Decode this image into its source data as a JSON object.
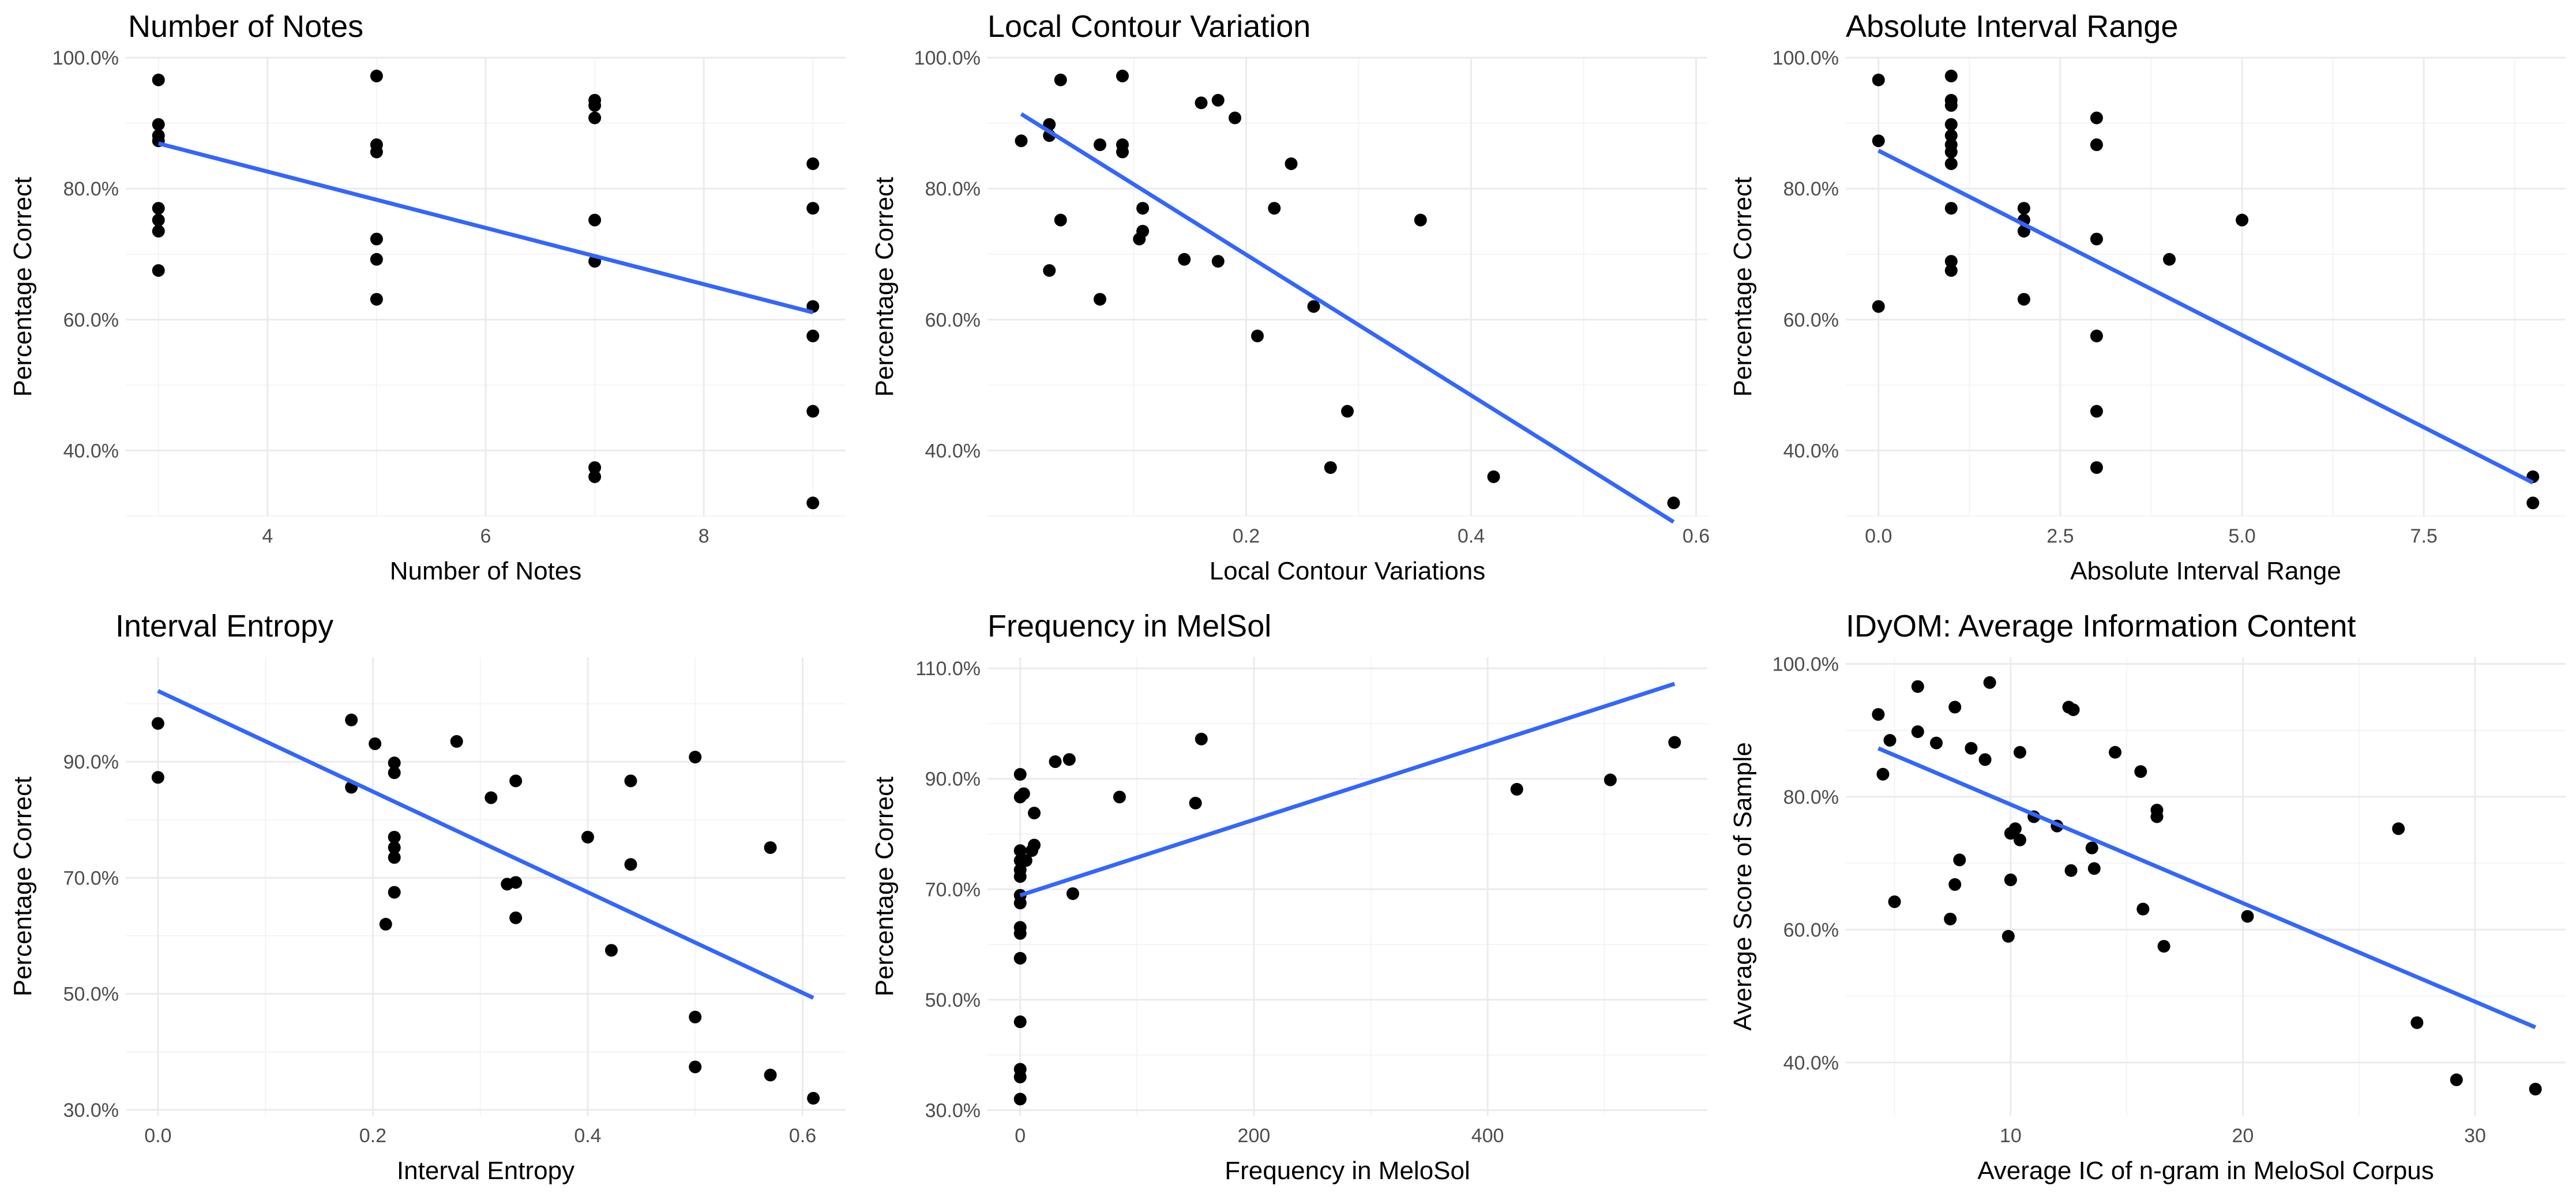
{
  "chart_data": [
    {
      "type": "scatter",
      "title": "Number of Notes",
      "xlabel": "Number of Notes",
      "ylabel": "Percentage Correct",
      "xlim": [
        2.7,
        9.3
      ],
      "ylim": [
        30,
        100
      ],
      "x_ticks": [
        4,
        6,
        8
      ],
      "x_tick_labels": [
        "4",
        "6",
        "8"
      ],
      "y_ticks": [
        40,
        60,
        80,
        100
      ],
      "y_tick_labels": [
        "40.0%",
        "60.0%",
        "80.0%",
        "100.0%"
      ],
      "grid": true,
      "points": [
        [
          3,
          96.6
        ],
        [
          3,
          89.8
        ],
        [
          3,
          88.1
        ],
        [
          3,
          87.3
        ],
        [
          3,
          77
        ],
        [
          3,
          75.2
        ],
        [
          3,
          73.5
        ],
        [
          3,
          67.5
        ],
        [
          5,
          97.2
        ],
        [
          5,
          86.7
        ],
        [
          5,
          85.6
        ],
        [
          5,
          72.3
        ],
        [
          5,
          69.2
        ],
        [
          5,
          63.1
        ],
        [
          7,
          93.5
        ],
        [
          7,
          92.7
        ],
        [
          7,
          90.8
        ],
        [
          7,
          75.2
        ],
        [
          7,
          68.9
        ],
        [
          7,
          37.4
        ],
        [
          7,
          36
        ],
        [
          9,
          83.8
        ],
        [
          9,
          77
        ],
        [
          9,
          62
        ],
        [
          9,
          57.5
        ],
        [
          9,
          46
        ],
        [
          9,
          32
        ]
      ],
      "fit": [
        [
          3,
          86.9
        ],
        [
          9,
          61.1
        ]
      ]
    },
    {
      "type": "scatter",
      "title": "Local Contour Variation",
      "xlabel": "Local Contour Variations",
      "ylabel": "Percentage Correct",
      "xlim": [
        -0.03,
        0.61
      ],
      "ylim": [
        30,
        100
      ],
      "x_ticks": [
        0.2,
        0.4,
        0.6
      ],
      "x_tick_labels": [
        "0.2",
        "0.4",
        "0.6"
      ],
      "y_ticks": [
        40,
        60,
        80,
        100
      ],
      "y_tick_labels": [
        "40.0%",
        "60.0%",
        "80.0%",
        "100.0%"
      ],
      "grid": true,
      "points": [
        [
          0,
          87.3
        ],
        [
          0.025,
          89.8
        ],
        [
          0.025,
          88.1
        ],
        [
          0.025,
          67.5
        ],
        [
          0.035,
          96.6
        ],
        [
          0.035,
          75.2
        ],
        [
          0.07,
          86.7
        ],
        [
          0.07,
          63.1
        ],
        [
          0.09,
          97.2
        ],
        [
          0.09,
          86.7
        ],
        [
          0.09,
          85.6
        ],
        [
          0.105,
          72.3
        ],
        [
          0.108,
          73.5
        ],
        [
          0.108,
          77
        ],
        [
          0.145,
          69.2
        ],
        [
          0.16,
          93.1
        ],
        [
          0.175,
          93.5
        ],
        [
          0.175,
          68.9
        ],
        [
          0.19,
          90.8
        ],
        [
          0.225,
          77
        ],
        [
          0.21,
          57.5
        ],
        [
          0.24,
          83.8
        ],
        [
          0.26,
          62
        ],
        [
          0.275,
          37.4
        ],
        [
          0.29,
          46
        ],
        [
          0.355,
          75.2
        ],
        [
          0.42,
          36
        ],
        [
          0.58,
          32
        ]
      ],
      "fit": [
        [
          0.0,
          91.4
        ],
        [
          0.58,
          29.1
        ]
      ]
    },
    {
      "type": "scatter",
      "title": "Absolute Interval Range",
      "xlabel": "Absolute Interval Range",
      "ylabel": "Percentage Correct",
      "xlim": [
        -0.45,
        9.45
      ],
      "ylim": [
        30,
        100
      ],
      "x_ticks": [
        0,
        2.5,
        5,
        7.5
      ],
      "x_tick_labels": [
        "0.0",
        "2.5",
        "5.0",
        "7.5"
      ],
      "y_ticks": [
        40,
        60,
        80,
        100
      ],
      "y_tick_labels": [
        "40.0%",
        "60.0%",
        "80.0%",
        "100.0%"
      ],
      "grid": true,
      "points": [
        [
          0,
          96.6
        ],
        [
          0,
          87.3
        ],
        [
          0,
          62
        ],
        [
          1,
          97.2
        ],
        [
          1,
          93.5
        ],
        [
          1,
          92.7
        ],
        [
          1,
          89.8
        ],
        [
          1,
          88.1
        ],
        [
          1,
          86.7
        ],
        [
          1,
          85.6
        ],
        [
          1,
          83.8
        ],
        [
          1,
          77
        ],
        [
          1,
          68.9
        ],
        [
          1,
          67.5
        ],
        [
          2,
          77
        ],
        [
          2,
          75.2
        ],
        [
          2,
          73.5
        ],
        [
          2,
          63.1
        ],
        [
          3,
          90.8
        ],
        [
          3,
          86.7
        ],
        [
          3,
          72.3
        ],
        [
          3,
          57.5
        ],
        [
          3,
          46
        ],
        [
          3,
          37.4
        ],
        [
          4,
          69.2
        ],
        [
          5,
          75.2
        ],
        [
          9,
          36
        ],
        [
          9,
          32
        ]
      ],
      "fit": [
        [
          0,
          85.8
        ],
        [
          9,
          35.1
        ]
      ]
    },
    {
      "type": "scatter",
      "title": "Interval Entropy",
      "xlabel": "Interval Entropy",
      "ylabel": "Percentage Correct",
      "xlim": [
        -0.03,
        0.64
      ],
      "ylim": [
        29,
        108
      ],
      "x_ticks": [
        0,
        0.2,
        0.4,
        0.6
      ],
      "x_tick_labels": [
        "0.0",
        "0.2",
        "0.4",
        "0.6"
      ],
      "y_ticks": [
        30,
        50,
        70,
        90
      ],
      "y_tick_labels": [
        "30.0%",
        "50.0%",
        "70.0%",
        "90.0%"
      ],
      "grid": true,
      "points": [
        [
          0,
          96.6
        ],
        [
          0,
          87.3
        ],
        [
          0.18,
          97.2
        ],
        [
          0.18,
          85.6
        ],
        [
          0.202,
          93.1
        ],
        [
          0.212,
          62
        ],
        [
          0.22,
          89.8
        ],
        [
          0.22,
          88.1
        ],
        [
          0.22,
          77
        ],
        [
          0.22,
          75.2
        ],
        [
          0.22,
          73.5
        ],
        [
          0.22,
          67.5
        ],
        [
          0.278,
          93.5
        ],
        [
          0.31,
          83.8
        ],
        [
          0.325,
          68.9
        ],
        [
          0.333,
          86.7
        ],
        [
          0.333,
          69.2
        ],
        [
          0.333,
          63.1
        ],
        [
          0.4,
          77
        ],
        [
          0.422,
          57.5
        ],
        [
          0.44,
          86.7
        ],
        [
          0.44,
          72.3
        ],
        [
          0.5,
          90.8
        ],
        [
          0.5,
          46
        ],
        [
          0.5,
          37.4
        ],
        [
          0.57,
          75.2
        ],
        [
          0.57,
          36
        ],
        [
          0.61,
          32
        ]
      ],
      "fit": [
        [
          0,
          102.2
        ],
        [
          0.61,
          49.3
        ]
      ]
    },
    {
      "type": "scatter",
      "title": "Frequency in MelSol",
      "xlabel": "Frequency in MeloSol",
      "ylabel": "Percentage Correct",
      "xlim": [
        -28,
        588
      ],
      "ylim": [
        29,
        112
      ],
      "x_ticks": [
        0,
        200,
        400
      ],
      "x_tick_labels": [
        "0",
        "200",
        "400"
      ],
      "y_ticks": [
        30,
        50,
        70,
        90,
        110
      ],
      "y_tick_labels": [
        "30.0%",
        "50.0%",
        "70.0%",
        "90.0%",
        "110.0%"
      ],
      "grid": true,
      "points": [
        [
          0,
          90.8
        ],
        [
          0,
          86.7
        ],
        [
          0,
          77
        ],
        [
          0,
          75.2
        ],
        [
          0,
          73.5
        ],
        [
          0,
          72.3
        ],
        [
          0,
          68.9
        ],
        [
          0,
          67.5
        ],
        [
          0,
          63.1
        ],
        [
          0,
          62
        ],
        [
          0,
          57.5
        ],
        [
          0,
          46
        ],
        [
          0,
          37.4
        ],
        [
          0,
          36
        ],
        [
          0,
          32
        ],
        [
          3,
          87.3
        ],
        [
          5,
          75.2
        ],
        [
          10,
          77
        ],
        [
          12,
          78
        ],
        [
          12,
          83.8
        ],
        [
          30,
          93.1
        ],
        [
          42,
          93.5
        ],
        [
          45,
          69.2
        ],
        [
          85,
          86.7
        ],
        [
          150,
          85.6
        ],
        [
          155,
          97.2
        ],
        [
          425,
          88.1
        ],
        [
          505,
          89.8
        ],
        [
          560,
          96.6
        ]
      ],
      "fit": [
        [
          0,
          68.9
        ],
        [
          560,
          107.2
        ]
      ]
    },
    {
      "type": "scatter",
      "title": "IDyOM: Average Information Content",
      "xlabel": "Average IC of n-gram in MeloSol Corpus",
      "ylabel": "Average Score of Sample",
      "xlim": [
        2.9,
        33.9
      ],
      "ylim": [
        32,
        101
      ],
      "x_ticks": [
        10,
        20,
        30
      ],
      "x_tick_labels": [
        "10",
        "20",
        "30"
      ],
      "y_ticks": [
        40,
        60,
        80,
        100
      ],
      "y_tick_labels": [
        "40.0%",
        "60.0%",
        "80.0%",
        "100.0%"
      ],
      "grid": true,
      "points": [
        [
          4.3,
          92.4
        ],
        [
          4.5,
          83.4
        ],
        [
          4.8,
          88.5
        ],
        [
          5,
          64.2
        ],
        [
          6,
          96.6
        ],
        [
          6,
          89.8
        ],
        [
          6.8,
          88.1
        ],
        [
          7.4,
          61.6
        ],
        [
          7.6,
          66.8
        ],
        [
          7.6,
          93.5
        ],
        [
          7.8,
          70.5
        ],
        [
          8.3,
          87.3
        ],
        [
          8.9,
          85.6
        ],
        [
          9.1,
          97.2
        ],
        [
          9.9,
          59
        ],
        [
          10,
          67.5
        ],
        [
          10,
          74.5
        ],
        [
          10.2,
          75.2
        ],
        [
          10.4,
          73.5
        ],
        [
          10.4,
          86.7
        ],
        [
          11,
          77
        ],
        [
          12,
          75.6
        ],
        [
          12.5,
          93.5
        ],
        [
          12.6,
          68.9
        ],
        [
          12.7,
          93.1
        ],
        [
          13.5,
          72.3
        ],
        [
          13.6,
          69.2
        ],
        [
          14.5,
          86.7
        ],
        [
          15.6,
          83.8
        ],
        [
          15.7,
          63.1
        ],
        [
          16.3,
          78
        ],
        [
          16.3,
          77
        ],
        [
          16.6,
          57.5
        ],
        [
          20.2,
          62
        ],
        [
          26.7,
          75.2
        ],
        [
          27.5,
          46
        ],
        [
          29.2,
          37.4
        ],
        [
          32.6,
          36
        ]
      ],
      "fit": [
        [
          4.3,
          87.3
        ],
        [
          32.6,
          45.3
        ]
      ]
    }
  ]
}
